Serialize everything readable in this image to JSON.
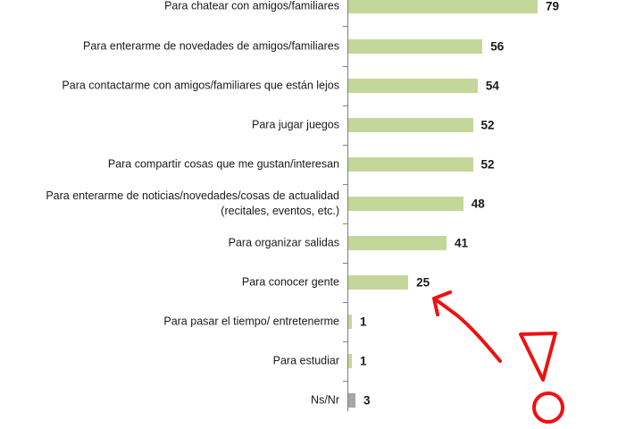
{
  "chart_data": {
    "type": "bar",
    "orientation": "horizontal",
    "categories": [
      "Para chatear con amigos/familiares",
      "Para enterarme de novedades de amigos/familiares",
      "Para contactarme con amigos/familiares que están lejos",
      "Para jugar juegos",
      "Para compartir cosas que me gustan/interesan",
      "Para enterarme de noticias/novedades/cosas de actualidad (recitales, eventos, etc.)",
      "Para organizar salidas",
      "Para conocer gente",
      "Para pasar el tiempo/ entretenerme",
      "Para estudiar",
      "Ns/Nr"
    ],
    "values": [
      79,
      56,
      54,
      52,
      52,
      48,
      41,
      25,
      1,
      1,
      3
    ],
    "value_labels": [
      "79",
      "56",
      "54",
      "52",
      "52",
      "48",
      "41",
      "25",
      "1",
      "1",
      "3"
    ],
    "bar_colors": [
      "#c4d79b",
      "#c4d79b",
      "#c4d79b",
      "#c4d79b",
      "#c4d79b",
      "#c4d79b",
      "#c4d79b",
      "#c4d79b",
      "#c4d79b",
      "#c4d79b",
      "#a6a6a6"
    ],
    "xlim": [
      0,
      100
    ],
    "grid": false,
    "legend": "none",
    "annotations": [
      "red-arrow",
      "red-triangle",
      "red-circle"
    ],
    "annotation_color": "#ee1111"
  }
}
